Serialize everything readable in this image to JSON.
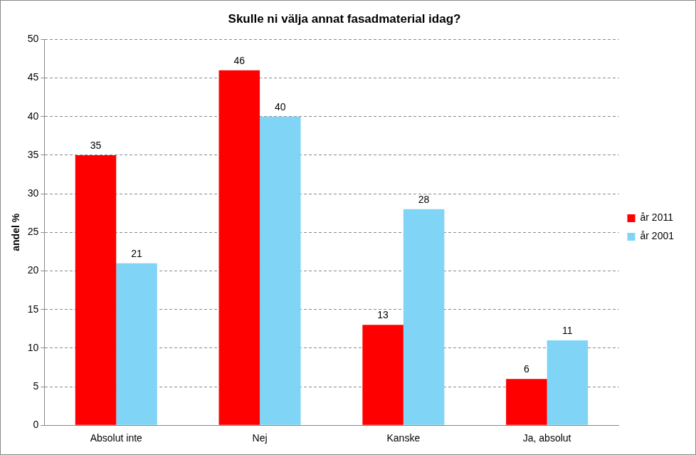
{
  "chart_data": {
    "type": "bar",
    "title": "Skulle ni välja annat fasadmaterial idag?",
    "y_label": "andel %",
    "categories": [
      "Absolut inte",
      "Nej",
      "Kanske",
      "Ja, absolut"
    ],
    "series": [
      {
        "name": "år 2011",
        "color": "#ff0000",
        "values": [
          35,
          46,
          13,
          6
        ]
      },
      {
        "name": "år 2001",
        "color": "#80d4f6",
        "values": [
          21,
          40,
          28,
          11
        ]
      }
    ],
    "ylim": [
      0,
      50
    ],
    "yticks": [
      0,
      5,
      10,
      15,
      20,
      25,
      30,
      35,
      40,
      45,
      50
    ],
    "grid": true,
    "legend": "right",
    "data_labels": true
  }
}
